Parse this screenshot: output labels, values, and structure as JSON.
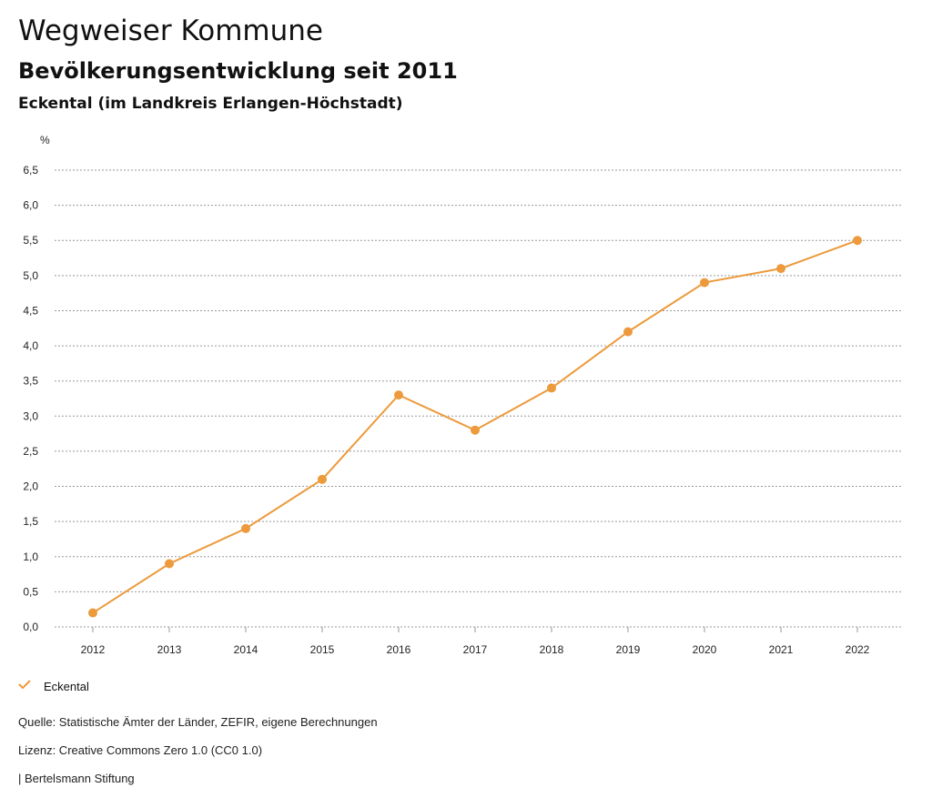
{
  "header": {
    "title": "Wegweiser Kommune",
    "subtitle": "Bevölkerungsentwicklung seit 2011",
    "region": "Eckental (im Landkreis Erlangen-Höchstadt)"
  },
  "chart_data": {
    "type": "line",
    "title": "Bevölkerungsentwicklung seit 2011",
    "ylabel": "%",
    "xlabel": "",
    "categories": [
      "2012",
      "2013",
      "2014",
      "2015",
      "2016",
      "2017",
      "2018",
      "2019",
      "2020",
      "2021",
      "2022"
    ],
    "series": [
      {
        "name": "Eckental",
        "color": "#ec9a3c",
        "values": [
          0.2,
          0.9,
          1.4,
          2.1,
          3.3,
          2.8,
          3.4,
          4.2,
          4.9,
          5.1,
          5.5
        ]
      }
    ],
    "ylim": [
      0,
      6.5
    ],
    "yticks": [
      "0,0",
      "0,5",
      "1,0",
      "1,5",
      "2,0",
      "2,5",
      "3,0",
      "3,5",
      "4,0",
      "4,5",
      "5,0",
      "5,5",
      "6,0",
      "6,5"
    ],
    "grid": true
  },
  "legend": {
    "label": "Eckental",
    "icon": "check-icon",
    "color": "#ec9a3c"
  },
  "footer": {
    "source": "Quelle: Statistische Ämter der Länder, ZEFIR, eigene Berechnungen",
    "license": "Lizenz: Creative Commons Zero 1.0 (CC0 1.0)",
    "publisher": "| Bertelsmann Stiftung"
  }
}
